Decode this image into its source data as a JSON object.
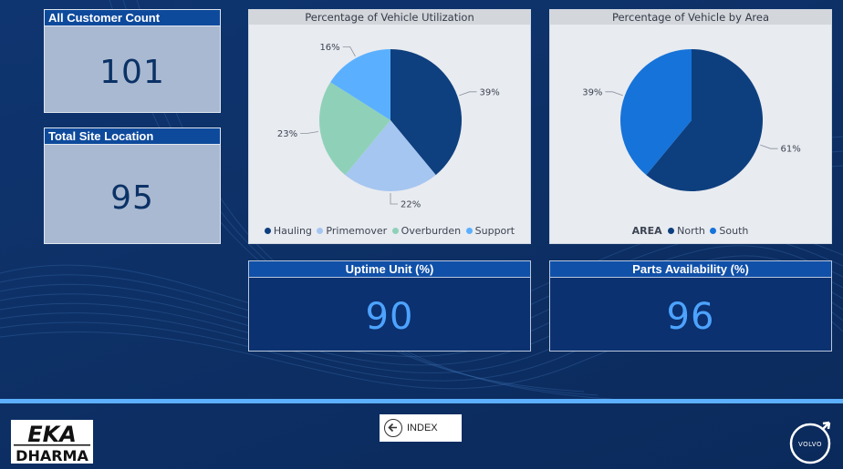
{
  "cards": {
    "customer": {
      "title": "All Customer Count",
      "value": "101"
    },
    "site": {
      "title": "Total Site Location",
      "value": "95"
    }
  },
  "utilization_chart": {
    "title": "Percentage of Vehicle Utilization",
    "legend": [
      {
        "label": "Hauling",
        "color": "#0e3f7e"
      },
      {
        "label": "Primemover",
        "color": "#a5c6f0"
      },
      {
        "label": "Overburden",
        "color": "#8fd1b8"
      },
      {
        "label": "Support",
        "color": "#5ab0ff"
      }
    ]
  },
  "area_chart": {
    "title": "Percentage of Vehicle by Area",
    "legend_title": "AREA",
    "legend": [
      {
        "label": "North",
        "color": "#0d3f7f"
      },
      {
        "label": "South",
        "color": "#1673d9"
      }
    ]
  },
  "kpis": {
    "uptime": {
      "title": "Uptime Unit (%)",
      "value": "90"
    },
    "parts": {
      "title": "Parts Availability (%)",
      "value": "96"
    }
  },
  "nav": {
    "index_label": "INDEX"
  },
  "logos": {
    "eka_top": "EKA",
    "eka_bottom": "DHARMA",
    "volvo": "VOLVO"
  },
  "chart_data": [
    {
      "type": "pie",
      "title": "Percentage of Vehicle Utilization",
      "categories": [
        "Hauling",
        "Primemover",
        "Overburden",
        "Support"
      ],
      "values": [
        39,
        22,
        23,
        16
      ],
      "labels": [
        "39%",
        "22%",
        "23%",
        "16%"
      ],
      "colors": [
        "#0e3f7e",
        "#a5c6f0",
        "#8fd1b8",
        "#5ab0ff"
      ],
      "legend": "bottom"
    },
    {
      "type": "pie",
      "title": "Percentage of Vehicle by Area",
      "categories": [
        "North",
        "South"
      ],
      "values": [
        61,
        39
      ],
      "labels": [
        "61%",
        "39%"
      ],
      "colors": [
        "#0d3f7f",
        "#1673d9"
      ],
      "legend": "bottom"
    }
  ]
}
